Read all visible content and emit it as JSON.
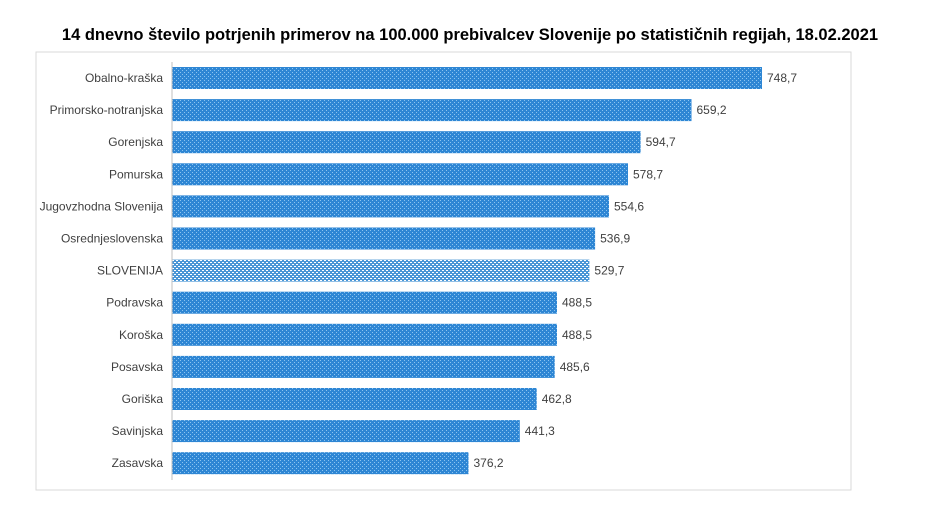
{
  "chart_data": {
    "type": "bar",
    "orientation": "horizontal",
    "title": "14 dnevno število potrjenih primerov na 100.000 prebivalcev Slovenije po statističnih regijah, 18.02.2021",
    "categories": [
      "Obalno-kraška",
      "Primorsko-notranjska",
      "Gorenjska",
      "Pomurska",
      "Jugovzhodna Slovenija",
      "Osrednjeslovenska",
      "SLOVENIJA",
      "Podravska",
      "Koroška",
      "Posavska",
      "Goriška",
      "Savinjska",
      "Zasavska"
    ],
    "values": [
      748.7,
      659.2,
      594.7,
      578.7,
      554.6,
      536.9,
      529.7,
      488.5,
      488.5,
      485.6,
      462.8,
      441.3,
      376.2
    ],
    "value_labels": [
      "748,7",
      "659,2",
      "594,7",
      "578,7",
      "554,6",
      "536,9",
      "529,7",
      "488,5",
      "488,5",
      "485,6",
      "462,8",
      "441,3",
      "376,2"
    ],
    "xlim": [
      0,
      800
    ],
    "highlight_category": "SLOVENIJA",
    "grid": false,
    "legend": "none",
    "colors": {
      "bar": "#2e86d4",
      "bar_texture": "#8cc4f0",
      "highlight_bar": "#4a96d6",
      "highlight_texture": "#ffffff",
      "axis": "#bfbfbf",
      "frame": "#d9d9d9",
      "label": "#404040"
    }
  }
}
